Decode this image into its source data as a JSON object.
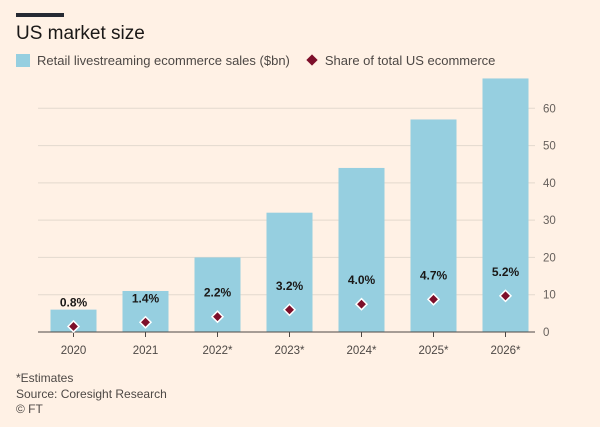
{
  "header": {
    "title": "US market size"
  },
  "legend": {
    "bars_label": "Retail livestreaming ecommerce sales ($bn)",
    "markers_label": "Share of total US ecommerce"
  },
  "colors": {
    "bar": "#96cfe0",
    "marker": "#7d0f2a",
    "background": "#fff1e5",
    "grid": "#e3d9ce"
  },
  "footer": {
    "note": "*Estimates",
    "source": "Source: Coresight Research",
    "credit": "© FT"
  },
  "chart_data": {
    "type": "bar",
    "categories": [
      "2020",
      "2021",
      "2022*",
      "2023*",
      "2024*",
      "2025*",
      "2026*"
    ],
    "series": [
      {
        "name": "Retail livestreaming ecommerce sales ($bn)",
        "values": [
          6,
          11,
          20,
          32,
          44,
          57,
          68
        ]
      },
      {
        "name": "Share of total US ecommerce",
        "values": [
          0.8,
          1.4,
          2.2,
          3.2,
          4.0,
          4.7,
          5.2
        ],
        "unit": "%",
        "marker": "diamond"
      }
    ],
    "share_labels": [
      "0.8%",
      "1.4%",
      "2.2%",
      "3.2%",
      "4.0%",
      "4.7%",
      "5.2%"
    ],
    "y_ticks": [
      "0",
      "10",
      "20",
      "30",
      "40",
      "50",
      "60"
    ],
    "ylim": [
      0,
      70
    ],
    "y_axis_side": "right",
    "grid": true,
    "legend_position": "top-left"
  }
}
